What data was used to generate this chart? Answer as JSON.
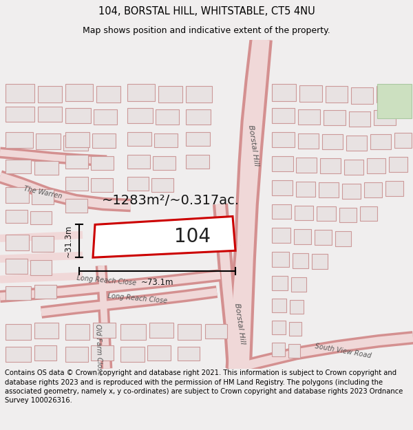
{
  "title": "104, BORSTAL HILL, WHITSTABLE, CT5 4NU",
  "subtitle": "Map shows position and indicative extent of the property.",
  "footer": "Contains OS data © Crown copyright and database right 2021. This information is subject to Crown copyright and database rights 2023 and is reproduced with the permission of HM Land Registry. The polygons (including the associated geometry, namely x, y co-ordinates) are subject to Crown copyright and database rights 2023 Ordnance Survey 100026316.",
  "area_text": "~1283m²/~0.317ac.",
  "width_text": "~73.1m",
  "height_text": "~31.3m",
  "number_text": "104",
  "bg_color": "#f0eeee",
  "map_bg": "#f7f2f2",
  "road_fill": "#f0d8d8",
  "road_edge": "#d49090",
  "bldg_fill": "#e8e2e2",
  "bldg_edge": "#cc9999",
  "highlight": "#cc0000",
  "green_fill": "#cce0c0",
  "green_edge": "#aac8a0",
  "label_color": "#555555",
  "title_fontsize": 10.5,
  "subtitle_fontsize": 9,
  "footer_fontsize": 7.2,
  "area_fontsize": 14,
  "num_fontsize": 20,
  "dim_fontsize": 8.5,
  "road_label_fontsize": 8
}
